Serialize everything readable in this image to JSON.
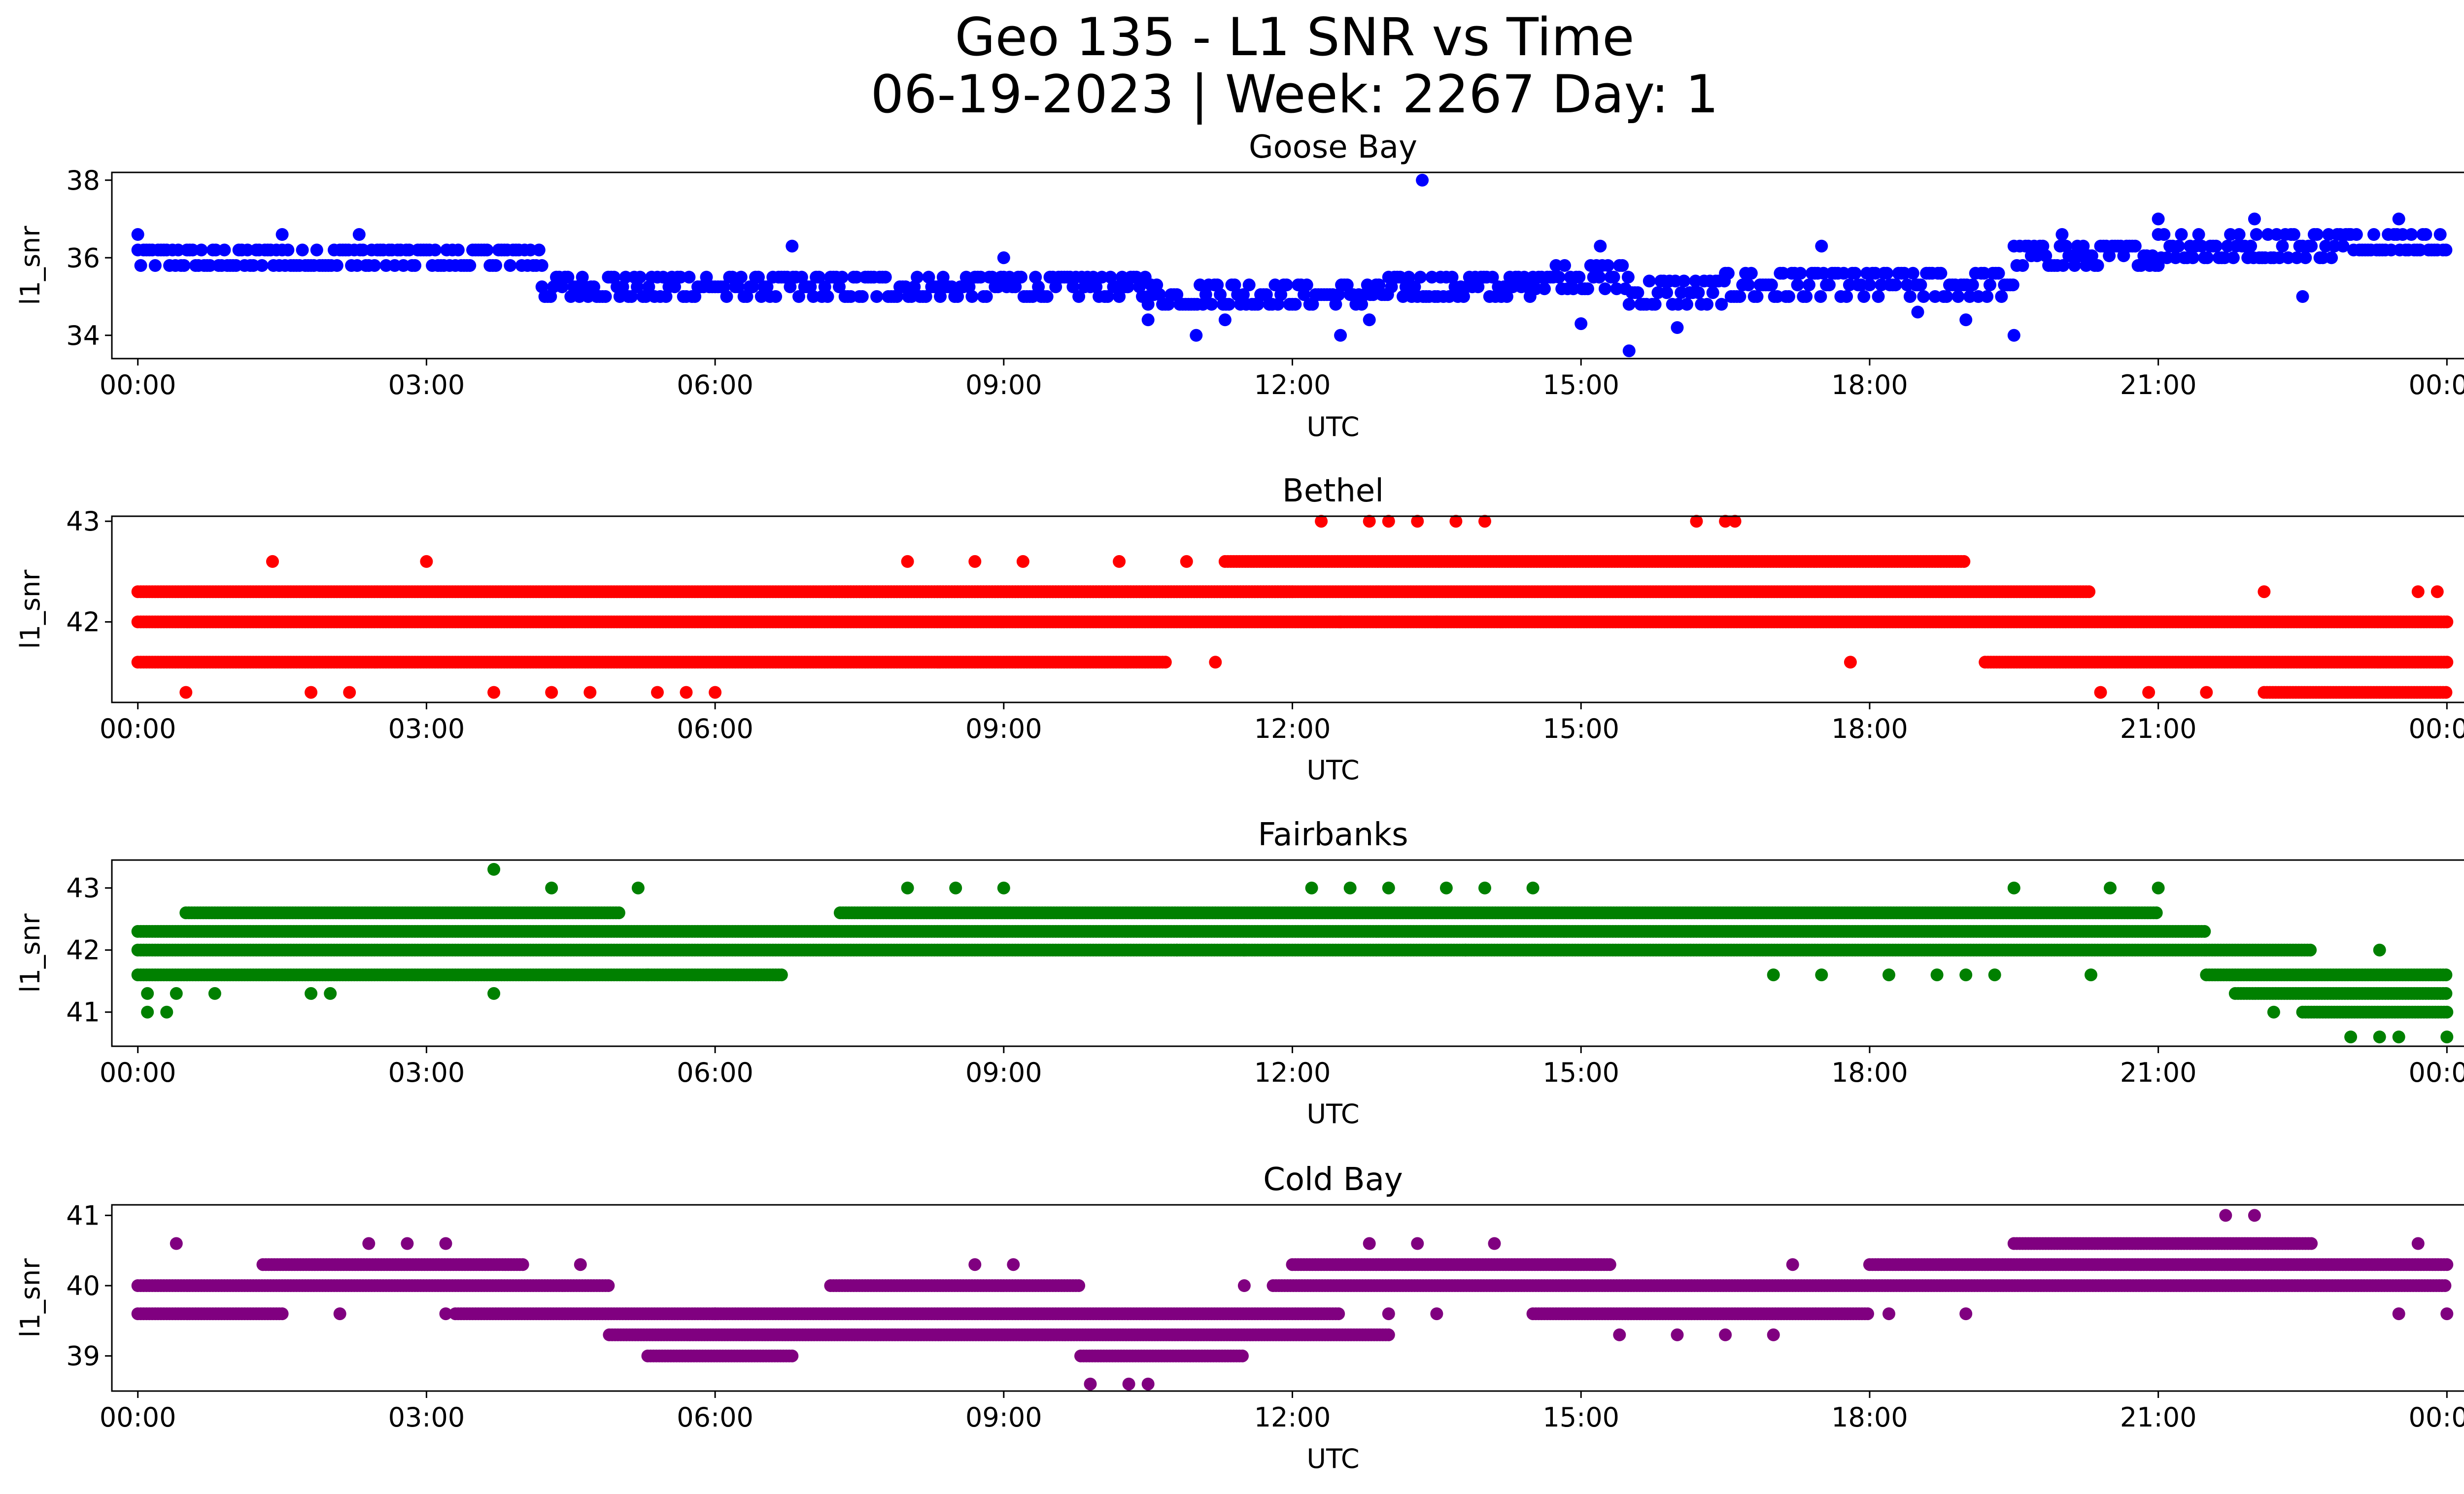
{
  "figure": {
    "title_line1": "Geo 135 - L1 SNR vs Time",
    "title_line2": "06-19-2023 | Week: 2267 Day: 1"
  },
  "chart_data": [
    {
      "type": "scatter",
      "title": "Goose Bay",
      "xlabel": "UTC",
      "ylabel": "l1_snr",
      "color": "#0000ff",
      "xlim": [
        -0.27,
        25.12
      ],
      "ylim": [
        33.4,
        38.2
      ],
      "xticks": [
        "00:00",
        "03:00",
        "06:00",
        "09:00",
        "12:00",
        "15:00",
        "18:00",
        "21:00",
        "00:00"
      ],
      "yticks": [
        34,
        36,
        38
      ],
      "step": 0.3,
      "bands": [
        [
          0.0,
          4.2,
          35.8,
          36.2
        ],
        [
          4.2,
          10.5,
          35.0,
          35.5
        ],
        [
          10.5,
          13.0,
          34.8,
          35.3
        ],
        [
          13.0,
          14.5,
          35.0,
          35.5
        ],
        [
          14.5,
          15.5,
          35.2,
          35.8
        ],
        [
          15.5,
          16.5,
          34.8,
          35.4
        ],
        [
          16.5,
          18.5,
          35.0,
          35.6
        ],
        [
          18.5,
          19.5,
          35.0,
          35.6
        ],
        [
          19.5,
          21.0,
          35.8,
          36.3
        ],
        [
          21.0,
          23.0,
          36.0,
          36.6
        ],
        [
          23.0,
          24.0,
          36.2,
          36.6
        ]
      ],
      "points": [
        [
          13.35,
          38.0
        ],
        [
          15.5,
          33.6
        ],
        [
          11.0,
          34.0
        ],
        [
          12.5,
          34.0
        ],
        [
          19.5,
          34.0
        ],
        [
          1.5,
          36.6
        ],
        [
          2.3,
          36.6
        ],
        [
          20.0,
          36.6
        ],
        [
          21.0,
          37.0
        ],
        [
          22.0,
          37.0
        ],
        [
          23.5,
          37.0
        ],
        [
          0.0,
          36.6
        ],
        [
          6.8,
          36.3
        ],
        [
          9.0,
          36.0
        ],
        [
          15.2,
          36.3
        ],
        [
          17.5,
          36.3
        ],
        [
          10.5,
          34.4
        ],
        [
          11.3,
          34.4
        ],
        [
          12.8,
          34.4
        ],
        [
          15.0,
          34.3
        ],
        [
          16.0,
          34.2
        ],
        [
          18.5,
          34.6
        ],
        [
          19.0,
          34.4
        ],
        [
          22.5,
          35.0
        ]
      ]
    },
    {
      "type": "scatter",
      "title": "Bethel",
      "xlabel": "UTC",
      "ylabel": "l1_snr",
      "color": "#ff0000",
      "xlim": [
        -0.27,
        25.12
      ],
      "ylim": [
        41.2,
        43.05
      ],
      "xticks": [
        "00:00",
        "03:00",
        "06:00",
        "09:00",
        "12:00",
        "15:00",
        "18:00",
        "21:00",
        "00:00"
      ],
      "yticks": [
        42,
        43
      ],
      "step": 0.3,
      "bands": [
        [
          0.0,
          24.0,
          42.0,
          42.0
        ],
        [
          0.0,
          10.7,
          41.6,
          41.6
        ],
        [
          19.2,
          24.0,
          41.6,
          41.6
        ],
        [
          0.0,
          12.0,
          42.3,
          42.3
        ],
        [
          7.2,
          20.3,
          42.3,
          42.3
        ],
        [
          11.3,
          19.0,
          42.6,
          42.6
        ],
        [
          22.1,
          24.0,
          41.3,
          41.3
        ]
      ],
      "points": [
        [
          0.5,
          41.3
        ],
        [
          1.8,
          41.3
        ],
        [
          2.2,
          41.3
        ],
        [
          3.7,
          41.3
        ],
        [
          4.3,
          41.3
        ],
        [
          4.7,
          41.3
        ],
        [
          5.4,
          41.3
        ],
        [
          5.7,
          41.3
        ],
        [
          6.0,
          41.3
        ],
        [
          20.4,
          41.3
        ],
        [
          20.9,
          41.3
        ],
        [
          21.5,
          41.3
        ],
        [
          1.4,
          42.6
        ],
        [
          3.0,
          42.6
        ],
        [
          8.0,
          42.6
        ],
        [
          8.7,
          42.6
        ],
        [
          9.2,
          42.6
        ],
        [
          10.2,
          42.6
        ],
        [
          10.9,
          42.6
        ],
        [
          11.2,
          41.6
        ],
        [
          17.8,
          41.6
        ],
        [
          12.3,
          43.0
        ],
        [
          12.8,
          43.0
        ],
        [
          13.0,
          43.0
        ],
        [
          13.3,
          43.0
        ],
        [
          13.7,
          43.0
        ],
        [
          14.0,
          43.0
        ],
        [
          16.2,
          43.0
        ],
        [
          16.5,
          43.0
        ],
        [
          16.6,
          43.0
        ],
        [
          13.5,
          42.0
        ],
        [
          12.5,
          42.0
        ],
        [
          22.1,
          42.3
        ],
        [
          23.7,
          42.3
        ],
        [
          23.9,
          42.3
        ]
      ]
    },
    {
      "type": "scatter",
      "title": "Fairbanks",
      "xlabel": "UTC",
      "ylabel": "l1_snr",
      "color": "#008000",
      "xlim": [
        -0.27,
        25.12
      ],
      "ylim": [
        40.45,
        43.45
      ],
      "xticks": [
        "00:00",
        "03:00",
        "06:00",
        "09:00",
        "12:00",
        "15:00",
        "18:00",
        "21:00",
        "00:00"
      ],
      "yticks": [
        41,
        42,
        43
      ],
      "step": 0.3,
      "bands": [
        [
          0.0,
          21.5,
          42.0,
          42.0
        ],
        [
          0.0,
          21.5,
          42.3,
          42.3
        ],
        [
          0.0,
          6.7,
          41.6,
          41.6
        ],
        [
          7.3,
          21.0,
          42.6,
          42.6
        ],
        [
          0.5,
          5.0,
          42.6,
          42.6
        ],
        [
          21.5,
          24.0,
          41.6,
          41.6
        ],
        [
          21.8,
          24.0,
          41.3,
          41.3
        ],
        [
          22.5,
          24.0,
          41.0,
          41.0
        ],
        [
          21.5,
          22.6,
          42.0,
          42.0
        ]
      ],
      "points": [
        [
          3.7,
          43.3
        ],
        [
          4.3,
          43.0
        ],
        [
          5.2,
          43.0
        ],
        [
          8.0,
          43.0
        ],
        [
          8.5,
          43.0
        ],
        [
          9.0,
          43.0
        ],
        [
          12.2,
          43.0
        ],
        [
          12.6,
          43.0
        ],
        [
          13.0,
          43.0
        ],
        [
          13.6,
          43.0
        ],
        [
          14.0,
          43.0
        ],
        [
          14.5,
          43.0
        ],
        [
          19.5,
          43.0
        ],
        [
          20.5,
          43.0
        ],
        [
          21.0,
          43.0
        ],
        [
          0.1,
          41.0
        ],
        [
          0.3,
          41.0
        ],
        [
          0.1,
          41.3
        ],
        [
          0.4,
          41.3
        ],
        [
          0.8,
          41.3
        ],
        [
          1.8,
          41.3
        ],
        [
          2.0,
          41.3
        ],
        [
          3.7,
          41.3
        ],
        [
          5.3,
          41.6
        ],
        [
          23.0,
          40.6
        ],
        [
          23.3,
          40.6
        ],
        [
          23.5,
          40.6
        ],
        [
          24.0,
          40.6
        ],
        [
          22.2,
          41.0
        ],
        [
          17.0,
          41.6
        ],
        [
          17.5,
          41.6
        ],
        [
          18.2,
          41.6
        ],
        [
          18.7,
          41.6
        ],
        [
          19.0,
          41.6
        ],
        [
          19.3,
          41.6
        ],
        [
          20.3,
          41.6
        ],
        [
          10.8,
          42.0
        ],
        [
          11.5,
          42.0
        ],
        [
          13.8,
          42.0
        ],
        [
          23.3,
          42.0
        ]
      ]
    },
    {
      "type": "scatter",
      "title": "Cold Bay",
      "xlabel": "UTC",
      "ylabel": "l1_snr",
      "color": "#800080",
      "xlim": [
        -0.27,
        25.12
      ],
      "ylim": [
        38.5,
        41.15
      ],
      "xticks": [
        "00:00",
        "03:00",
        "06:00",
        "09:00",
        "12:00",
        "15:00",
        "18:00",
        "21:00",
        "00:00"
      ],
      "yticks": [
        39,
        40,
        41
      ],
      "step": 0.3,
      "bands": [
        [
          0.0,
          4.9,
          40.0,
          40.0
        ],
        [
          0.0,
          1.5,
          39.6,
          39.6
        ],
        [
          1.3,
          4.0,
          40.3,
          40.3
        ],
        [
          3.3,
          6.0,
          39.6,
          39.6
        ],
        [
          4.9,
          13.0,
          39.3,
          39.3
        ],
        [
          5.3,
          6.8,
          39.0,
          39.0
        ],
        [
          6.0,
          12.5,
          39.6,
          39.6
        ],
        [
          7.2,
          9.8,
          40.0,
          40.0
        ],
        [
          9.8,
          11.5,
          39.0,
          39.0
        ],
        [
          11.8,
          24.0,
          40.0,
          40.0
        ],
        [
          12.0,
          15.3,
          40.3,
          40.3
        ],
        [
          14.5,
          18.0,
          39.6,
          39.6
        ],
        [
          18.0,
          24.0,
          40.3,
          40.3
        ],
        [
          19.5,
          22.6,
          40.6,
          40.6
        ]
      ],
      "points": [
        [
          0.4,
          40.6
        ],
        [
          2.4,
          40.6
        ],
        [
          2.8,
          40.6
        ],
        [
          3.2,
          40.6
        ],
        [
          2.1,
          39.6
        ],
        [
          3.2,
          39.6
        ],
        [
          4.6,
          40.3
        ],
        [
          9.9,
          38.6
        ],
        [
          10.3,
          38.6
        ],
        [
          10.5,
          38.6
        ],
        [
          11.5,
          40.0
        ],
        [
          8.7,
          40.3
        ],
        [
          9.1,
          40.3
        ],
        [
          12.8,
          40.6
        ],
        [
          13.3,
          40.6
        ],
        [
          14.1,
          40.6
        ],
        [
          13.0,
          39.6
        ],
        [
          13.5,
          39.6
        ],
        [
          15.4,
          39.3
        ],
        [
          16.0,
          39.3
        ],
        [
          17.0,
          39.3
        ],
        [
          16.5,
          39.3
        ],
        [
          17.2,
          40.3
        ],
        [
          18.2,
          39.6
        ],
        [
          21.7,
          41.0
        ],
        [
          22.0,
          41.0
        ],
        [
          23.7,
          40.6
        ],
        [
          23.5,
          39.6
        ],
        [
          24.0,
          39.6
        ],
        [
          19.0,
          39.6
        ]
      ]
    }
  ]
}
